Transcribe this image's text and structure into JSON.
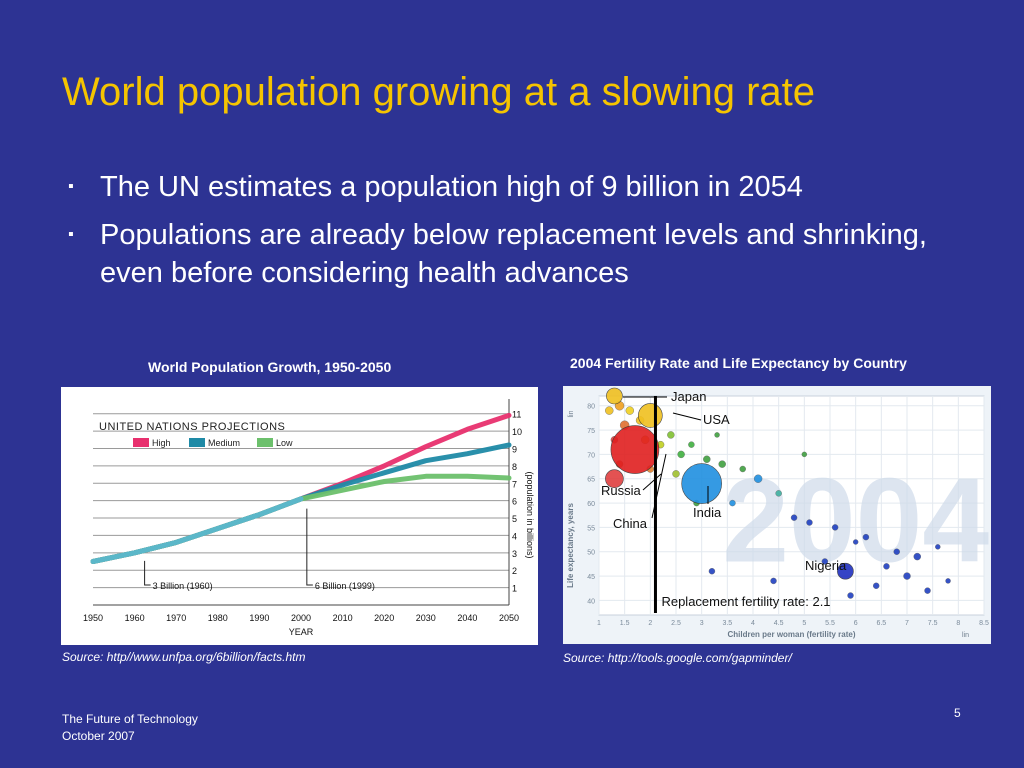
{
  "slide": {
    "title": "World population growing at a slowing rate",
    "bullets": [
      "The UN estimates a population high of 9 billion in 2054",
      "Populations are already below replacement levels and shrinking, even before considering health advances"
    ],
    "left_chart_caption": "World Population Growth, 1950-2050",
    "right_chart_caption": "2004 Fertility Rate and Life Expectancy by Country",
    "left_source": "Source: http//www.unfpa.org/6billion/facts.htm",
    "right_source": "Source: http://tools.google.com/gapminder/",
    "footer_line1": "The Future of Technology",
    "footer_line2": "October 2007",
    "page_number": "5",
    "colors": {
      "background": "#2d3393",
      "title": "#f5c400",
      "high": "#e8306e",
      "medium": "#1f8aa6",
      "low": "#6cc06c"
    }
  },
  "chart_data": [
    {
      "type": "line",
      "heading": "UNITED NATIONS PROJECTIONS",
      "xlabel": "YEAR",
      "ylabel": "(population in billions)",
      "x_ticks": [
        1950,
        1960,
        1970,
        1980,
        1990,
        2000,
        2010,
        2020,
        2030,
        2040,
        2050
      ],
      "y_ticks": [
        1,
        2,
        3,
        4,
        5,
        6,
        7,
        8,
        9,
        10,
        11
      ],
      "xlim": [
        1950,
        2050
      ],
      "ylim": [
        0,
        11.5
      ],
      "grid": true,
      "legend_position": "top-left",
      "historical": {
        "x": [
          1950,
          1960,
          1970,
          1980,
          1990,
          2000
        ],
        "y": [
          2.5,
          3.0,
          3.6,
          4.4,
          5.2,
          6.1
        ]
      },
      "series": [
        {
          "name": "High",
          "color": "#e8306e",
          "x": [
            2000,
            2010,
            2020,
            2030,
            2040,
            2050
          ],
          "y": [
            6.1,
            7.0,
            8.0,
            9.1,
            10.1,
            10.9
          ]
        },
        {
          "name": "Medium",
          "color": "#1f8aa6",
          "x": [
            2000,
            2010,
            2020,
            2030,
            2040,
            2050
          ],
          "y": [
            6.1,
            6.9,
            7.6,
            8.3,
            8.7,
            9.2
          ]
        },
        {
          "name": "Low",
          "color": "#6cc06c",
          "x": [
            2000,
            2010,
            2020,
            2030,
            2040,
            2050
          ],
          "y": [
            6.1,
            6.6,
            7.1,
            7.4,
            7.4,
            7.3
          ]
        }
      ],
      "annotations": [
        {
          "text": "3 Billion (1960)",
          "x": 1960,
          "y": 3.0
        },
        {
          "text": "6 Billion (1999)",
          "x": 1999,
          "y": 6.0
        }
      ]
    },
    {
      "type": "scatter",
      "xlabel": "Children per woman (fertility rate)",
      "ylabel": "Life expectancy, years",
      "watermark": "2004",
      "x_ticks": [
        1,
        1.5,
        2,
        2.5,
        3,
        3.5,
        4,
        4.5,
        5,
        5.5,
        6,
        6.5,
        7,
        7.5,
        8,
        8.5
      ],
      "y_ticks": [
        40,
        45,
        50,
        55,
        60,
        65,
        70,
        75,
        80
      ],
      "xlim": [
        1,
        8.5
      ],
      "ylim": [
        37,
        82
      ],
      "axis_scale_x": "lin",
      "axis_scale_y": "lin",
      "reference_line": {
        "x": 2.1,
        "label": "Replacement fertility rate: 2.1"
      },
      "labeled_points": [
        {
          "label": "Japan",
          "x": 1.3,
          "y": 82,
          "size": 8,
          "color": "#f0c020"
        },
        {
          "label": "USA",
          "x": 2.0,
          "y": 78,
          "size": 12,
          "color": "#f0c020"
        },
        {
          "label": "Russia",
          "x": 1.3,
          "y": 65,
          "size": 9,
          "color": "#e04040"
        },
        {
          "label": "China",
          "x": 1.7,
          "y": 71,
          "size": 24,
          "color": "#e02020"
        },
        {
          "label": "India",
          "x": 3.0,
          "y": 64,
          "size": 20,
          "color": "#2090e0"
        },
        {
          "label": "Nigeria",
          "x": 5.8,
          "y": 46,
          "size": 8,
          "color": "#2030c0"
        }
      ],
      "other_points": [
        {
          "x": 1.2,
          "y": 79,
          "size": 6,
          "color": "#f0c020"
        },
        {
          "x": 1.4,
          "y": 80,
          "size": 7,
          "color": "#f0a020"
        },
        {
          "x": 1.6,
          "y": 79,
          "size": 6,
          "color": "#f0d020"
        },
        {
          "x": 1.5,
          "y": 76,
          "size": 7,
          "color": "#e07030"
        },
        {
          "x": 1.8,
          "y": 77,
          "size": 6,
          "color": "#f0c020"
        },
        {
          "x": 1.3,
          "y": 73,
          "size": 5,
          "color": "#e04040"
        },
        {
          "x": 1.9,
          "y": 73,
          "size": 6,
          "color": "#f0a020"
        },
        {
          "x": 2.2,
          "y": 72,
          "size": 5,
          "color": "#c0d020"
        },
        {
          "x": 2.4,
          "y": 74,
          "size": 5,
          "color": "#80c030"
        },
        {
          "x": 2.6,
          "y": 70,
          "size": 5,
          "color": "#40b040"
        },
        {
          "x": 2.8,
          "y": 72,
          "size": 4,
          "color": "#40b040"
        },
        {
          "x": 3.1,
          "y": 69,
          "size": 5,
          "color": "#40a040"
        },
        {
          "x": 1.4,
          "y": 68,
          "size": 5,
          "color": "#e06030"
        },
        {
          "x": 2.0,
          "y": 67,
          "size": 5,
          "color": "#e08030"
        },
        {
          "x": 2.5,
          "y": 66,
          "size": 5,
          "color": "#a0c030"
        },
        {
          "x": 3.4,
          "y": 68,
          "size": 5,
          "color": "#40a040"
        },
        {
          "x": 3.8,
          "y": 67,
          "size": 4,
          "color": "#40a040"
        },
        {
          "x": 4.1,
          "y": 65,
          "size": 6,
          "color": "#2090e0"
        },
        {
          "x": 4.5,
          "y": 62,
          "size": 4,
          "color": "#40b0a0"
        },
        {
          "x": 3.6,
          "y": 60,
          "size": 4,
          "color": "#2090e0"
        },
        {
          "x": 4.8,
          "y": 57,
          "size": 4,
          "color": "#2040c0"
        },
        {
          "x": 5.1,
          "y": 56,
          "size": 4,
          "color": "#2040c0"
        },
        {
          "x": 5.6,
          "y": 55,
          "size": 4,
          "color": "#2040c0"
        },
        {
          "x": 6.2,
          "y": 53,
          "size": 4,
          "color": "#2040c0"
        },
        {
          "x": 6.8,
          "y": 50,
          "size": 4,
          "color": "#2040c0"
        },
        {
          "x": 7.2,
          "y": 49,
          "size": 5,
          "color": "#2040c0"
        },
        {
          "x": 5.4,
          "y": 48,
          "size": 4,
          "color": "#2040c0"
        },
        {
          "x": 6.6,
          "y": 47,
          "size": 4,
          "color": "#2040c0"
        },
        {
          "x": 7.0,
          "y": 45,
          "size": 5,
          "color": "#2040c0"
        },
        {
          "x": 6.4,
          "y": 43,
          "size": 4,
          "color": "#2040c0"
        },
        {
          "x": 7.4,
          "y": 42,
          "size": 4,
          "color": "#2040c0"
        },
        {
          "x": 4.4,
          "y": 44,
          "size": 4,
          "color": "#2040c0"
        },
        {
          "x": 5.9,
          "y": 41,
          "size": 4,
          "color": "#2040c0"
        },
        {
          "x": 3.2,
          "y": 46,
          "size": 4,
          "color": "#2040c0"
        },
        {
          "x": 2.9,
          "y": 60,
          "size": 4,
          "color": "#40a040"
        },
        {
          "x": 3.3,
          "y": 74,
          "size": 3,
          "color": "#40a040"
        },
        {
          "x": 5.0,
          "y": 70,
          "size": 3,
          "color": "#40a040"
        },
        {
          "x": 6.0,
          "y": 52,
          "size": 3,
          "color": "#2040c0"
        },
        {
          "x": 7.8,
          "y": 44,
          "size": 3,
          "color": "#2040c0"
        },
        {
          "x": 7.6,
          "y": 51,
          "size": 3,
          "color": "#2040c0"
        }
      ]
    }
  ]
}
